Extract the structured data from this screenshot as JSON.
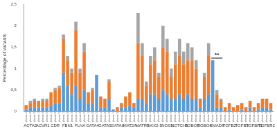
{
  "chart_data": {
    "type": "bar",
    "y_label": "Percentage of variants",
    "groups": [
      "ACTA2",
      "ACVR1",
      "CDR",
      "FBN1",
      "FLNA",
      "GATA4",
      "GATA5",
      "GATA6",
      "MAT2A",
      "MATR3",
      "NKX2-5",
      "NOS3",
      "NOTCH1",
      "ROBO3",
      "ROBO4",
      "SMAD6",
      "TGFB2",
      "TGFB3",
      "TGFBR1",
      "TGFBR2"
    ],
    "categories": [
      "pheno 1",
      "pheno 2",
      "pheno 3",
      "pheno 1",
      "pheno 2",
      "pheno 3",
      "pheno 1",
      "pheno 2",
      "pheno 3",
      "pheno 1",
      "pheno 2",
      "pheno 3",
      "pheno 1",
      "pheno 2",
      "pheno 3",
      "pheno 1",
      "pheno 2",
      "pheno 3",
      "pheno 1",
      "pheno 2",
      "pheno 3",
      "pheno 1",
      "pheno 2",
      "pheno 3",
      "pheno 1",
      "pheno 2",
      "pheno 3",
      "pheno 1",
      "pheno 2",
      "pheno 3",
      "pheno 1",
      "pheno 2",
      "pheno 3",
      "pheno 1",
      "pheno 2",
      "pheno 3",
      "pheno 1",
      "pheno 2",
      "pheno 3",
      "pheno 1",
      "pheno 2",
      "pheno 3",
      "pheno 1",
      "pheno 2",
      "pheno 3",
      "pheno 1",
      "pheno 2",
      "pheno 3",
      "pheno 1",
      "pheno 2",
      "pheno 3",
      "pheno 1",
      "pheno 2",
      "pheno 3",
      "pheno 1",
      "pheno 2",
      "pheno 3",
      "pheno 1",
      "pheno 2",
      "pheno 3"
    ],
    "stacked": true,
    "grid": false,
    "series": [
      {
        "color": "#5b9bd5",
        "values": [
          0.05,
          0.1,
          0.1,
          0.1,
          0.1,
          0.1,
          0.15,
          0.2,
          0.2,
          0.9,
          0.6,
          0.4,
          0.6,
          0.3,
          0.5,
          0.2,
          0.2,
          0.85,
          0.1,
          0.1,
          0.3,
          0.05,
          0,
          0.1,
          0.1,
          0.15,
          0.1,
          0.3,
          0.3,
          0.2,
          0.4,
          0.4,
          0.3,
          0.5,
          0.4,
          0.3,
          0.3,
          0.4,
          0.3,
          0.4,
          0.3,
          0.3,
          0.1,
          0.3,
          0.4,
          1.2,
          0.1,
          0.1,
          0,
          0.05,
          0,
          0,
          0.05,
          0,
          0.1,
          0,
          0.05,
          0.1,
          0.1,
          0.05
        ]
      },
      {
        "color": "#ed7d31",
        "values": [
          0.1,
          0.1,
          0.15,
          0.15,
          0.15,
          0.15,
          0.3,
          0.3,
          0.35,
          0.8,
          0.6,
          0.5,
          1.3,
          0.6,
          0.9,
          0.25,
          0.3,
          0,
          0.25,
          0.2,
          0.4,
          0,
          0.1,
          0.1,
          0.25,
          0.3,
          0.1,
          1.3,
          1.0,
          0.4,
          0.7,
          0.8,
          0.5,
          1.0,
          1.0,
          0.5,
          0.8,
          0.9,
          0.8,
          0.8,
          0.9,
          0.7,
          0.2,
          0.5,
          0.9,
          0,
          0.3,
          0.15,
          0.1,
          0.15,
          0.1,
          0.15,
          0.15,
          0.1,
          0.15,
          0.1,
          0.15,
          0.2,
          0.2,
          0.15
        ]
      },
      {
        "color": "#a5a5a5",
        "values": [
          0,
          0.05,
          0.05,
          0,
          0.05,
          0.05,
          0,
          0.05,
          0.05,
          0.1,
          0.1,
          0.1,
          0.2,
          0.1,
          0.2,
          0,
          0.05,
          0,
          0,
          0,
          0.05,
          0,
          0,
          0,
          0,
          0,
          0,
          0.7,
          0.3,
          0.1,
          0.2,
          0.3,
          0.1,
          0.5,
          0.3,
          0.2,
          0.3,
          0.4,
          0.3,
          0.4,
          0.3,
          0.2,
          0,
          0.1,
          0.3,
          0,
          0.1,
          0.05,
          0,
          0,
          0,
          0,
          0,
          0,
          0,
          0,
          0,
          0,
          0,
          0
        ]
      }
    ],
    "ylim": [
      0,
      2.5
    ],
    "yticks": [
      0,
      {
        "value": 0.5,
        "label": "0,5"
      },
      1,
      {
        "value": 1.5,
        "label": "1,5"
      },
      2,
      {
        "value": 2.5,
        "label": "2,5"
      }
    ],
    "annotation": {
      "text": "**",
      "group": "SMAD6"
    }
  }
}
